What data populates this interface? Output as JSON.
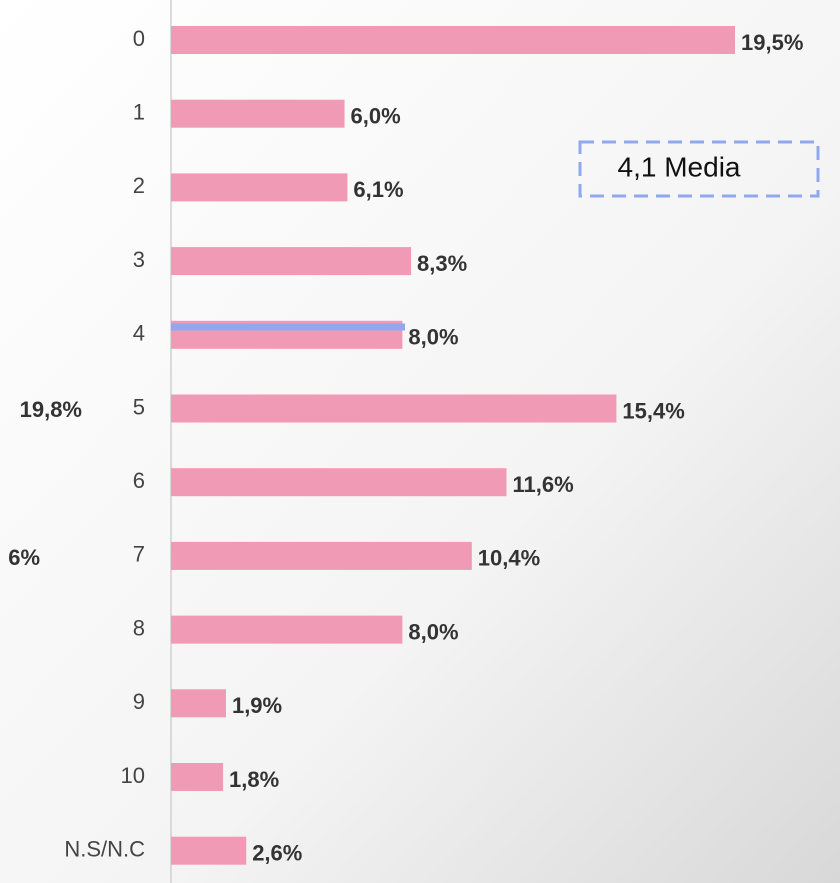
{
  "chart_data": {
    "type": "bar",
    "orientation": "horizontal",
    "categories": [
      "0",
      "1",
      "2",
      "3",
      "4",
      "5",
      "6",
      "7",
      "8",
      "9",
      "10",
      "N.S/N.C"
    ],
    "values": [
      19.5,
      6.0,
      6.1,
      8.3,
      8.0,
      15.4,
      11.6,
      10.4,
      8.0,
      1.9,
      1.8,
      2.6
    ],
    "value_labels": [
      "19,5%",
      "6,0%",
      "6,1%",
      "8,3%",
      "8,0%",
      "15,4%",
      "11,6%",
      "10,4%",
      "8,0%",
      "1,9%",
      "1,8%",
      "2,6%"
    ],
    "color": "#f19ab5",
    "annotations": [
      "4,1 Media",
      "19,8%",
      "6%"
    ]
  }
}
